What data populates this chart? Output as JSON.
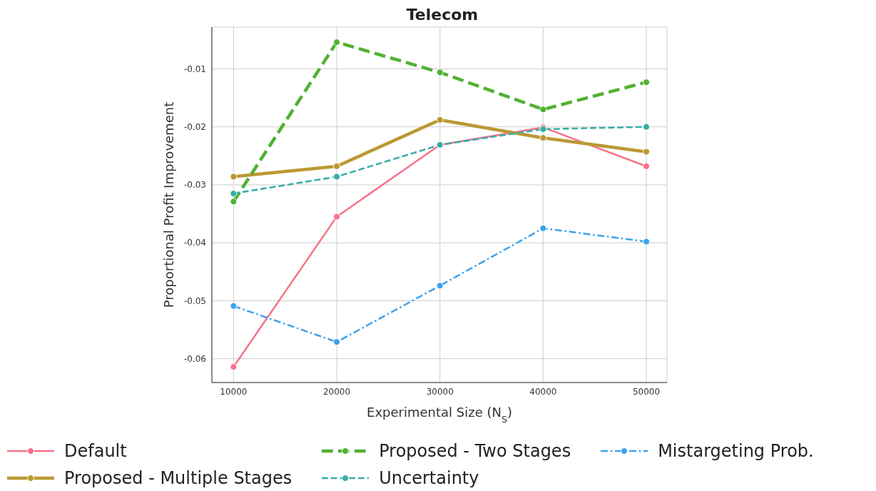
{
  "chart_data": {
    "type": "line",
    "title": "Telecom",
    "xlabel": "Experimental Size (N$_{S}$)",
    "ylabel": "Proportional Profit Improvement",
    "x": [
      10000,
      20000,
      30000,
      40000,
      50000
    ],
    "series": [
      {
        "name": "Default",
        "color": "#f77189",
        "line_style": "solid",
        "values": [
          -0.0614,
          -0.0355,
          -0.0231,
          -0.0201,
          -0.0268
        ]
      },
      {
        "name": "Proposed - Multiple Stages",
        "color": "#bb9832",
        "line_style": "solid",
        "values": [
          -0.0286,
          -0.0268,
          -0.0188,
          -0.0219,
          -0.0243
        ]
      },
      {
        "name": "Proposed - Two Stages",
        "color": "#50b131",
        "line_style": "dashed",
        "values": [
          -0.0329,
          -0.0054,
          -0.0106,
          -0.017,
          -0.0123
        ]
      },
      {
        "name": "Uncertainty",
        "color": "#36ada4",
        "line_style": "dashed",
        "values": [
          -0.0315,
          -0.0286,
          -0.0231,
          -0.0204,
          -0.02
        ]
      },
      {
        "name": "Mistargeting Prob.",
        "color": "#3ba3ec",
        "line_style": "dashdot",
        "values": [
          -0.0509,
          -0.0571,
          -0.0474,
          -0.0375,
          -0.0398
        ]
      }
    ],
    "xlim": [
      7900,
      52000
    ],
    "xticks": [
      10000,
      20000,
      30000,
      40000,
      50000
    ],
    "ylim": [
      -0.0641,
      -0.0028
    ],
    "yticks": [
      -0.06,
      -0.05,
      -0.04,
      -0.03,
      -0.02,
      -0.01
    ],
    "grid": true,
    "legend": "bottom",
    "marker": "circle"
  }
}
